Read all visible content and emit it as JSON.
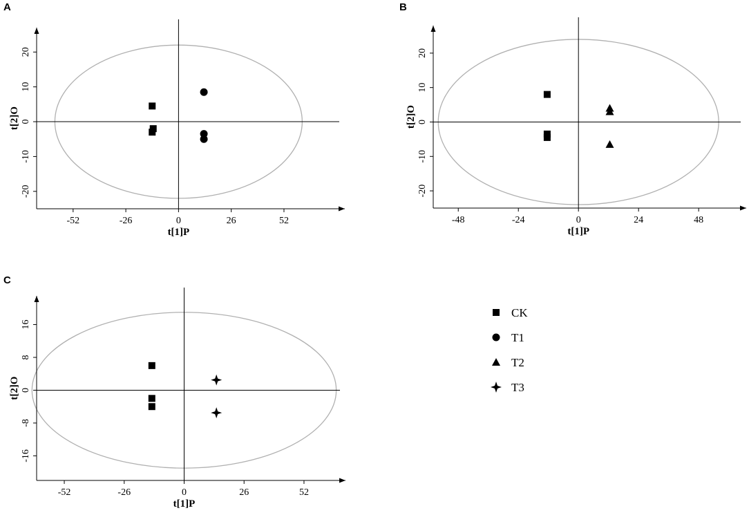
{
  "chart_data": [
    {
      "panel": "A",
      "type": "scatter",
      "xlabel": "t[1]P",
      "ylabel": "t[2]O",
      "xlim": [
        -70,
        82
      ],
      "ylim": [
        -25,
        27
      ],
      "xticks": [
        -52,
        -26,
        0,
        26,
        52
      ],
      "yticks": [
        -20,
        -10,
        0,
        10,
        20
      ],
      "ellipse": {
        "rx": 61,
        "ry": 22
      },
      "series": [
        {
          "name": "CK",
          "marker": "square",
          "points": [
            [
              -13,
              4.5
            ],
            [
              -12.5,
              -2
            ],
            [
              -13,
              -3
            ]
          ]
        },
        {
          "name": "T1",
          "marker": "circle",
          "points": [
            [
              12.5,
              8.5
            ],
            [
              12.5,
              -3.5
            ],
            [
              12.5,
              -5
            ]
          ]
        }
      ]
    },
    {
      "panel": "B",
      "type": "scatter",
      "xlabel": "t[1]P",
      "ylabel": "t[2]O",
      "xlim": [
        -58,
        67
      ],
      "ylim": [
        -25,
        28
      ],
      "xticks": [
        -48,
        -24,
        0,
        24,
        48
      ],
      "yticks": [
        -20,
        -10,
        0,
        10,
        20
      ],
      "ellipse": {
        "rx": 56,
        "ry": 24
      },
      "series": [
        {
          "name": "CK",
          "marker": "square",
          "points": [
            [
              -12.5,
              8
            ],
            [
              -12.5,
              -3.5
            ],
            [
              -12.5,
              -4.5
            ]
          ]
        },
        {
          "name": "T2",
          "marker": "triangle",
          "points": [
            [
              12.5,
              4
            ],
            [
              12.5,
              3
            ],
            [
              12.5,
              -6.5
            ]
          ]
        }
      ]
    },
    {
      "panel": "C",
      "type": "scatter",
      "xlabel": "t[1]P",
      "ylabel": "t[2]O",
      "xlim": [
        -64,
        70
      ],
      "ylim": [
        -22,
        23
      ],
      "xticks": [
        -52,
        -26,
        0,
        26,
        52
      ],
      "yticks": [
        -16,
        -8,
        0,
        8,
        16
      ],
      "ellipse": {
        "rx": 66,
        "ry": 19
      },
      "series": [
        {
          "name": "CK",
          "marker": "square",
          "points": [
            [
              -14,
              6
            ],
            [
              -14,
              -2
            ],
            [
              -14,
              -4
            ]
          ]
        },
        {
          "name": "T3",
          "marker": "star",
          "points": [
            [
              14,
              2.5
            ],
            [
              14,
              -5.5
            ]
          ]
        }
      ]
    }
  ],
  "legend": [
    {
      "label": "CK",
      "marker": "square"
    },
    {
      "label": "T1",
      "marker": "circle"
    },
    {
      "label": "T2",
      "marker": "triangle"
    },
    {
      "label": "T3",
      "marker": "star"
    }
  ]
}
